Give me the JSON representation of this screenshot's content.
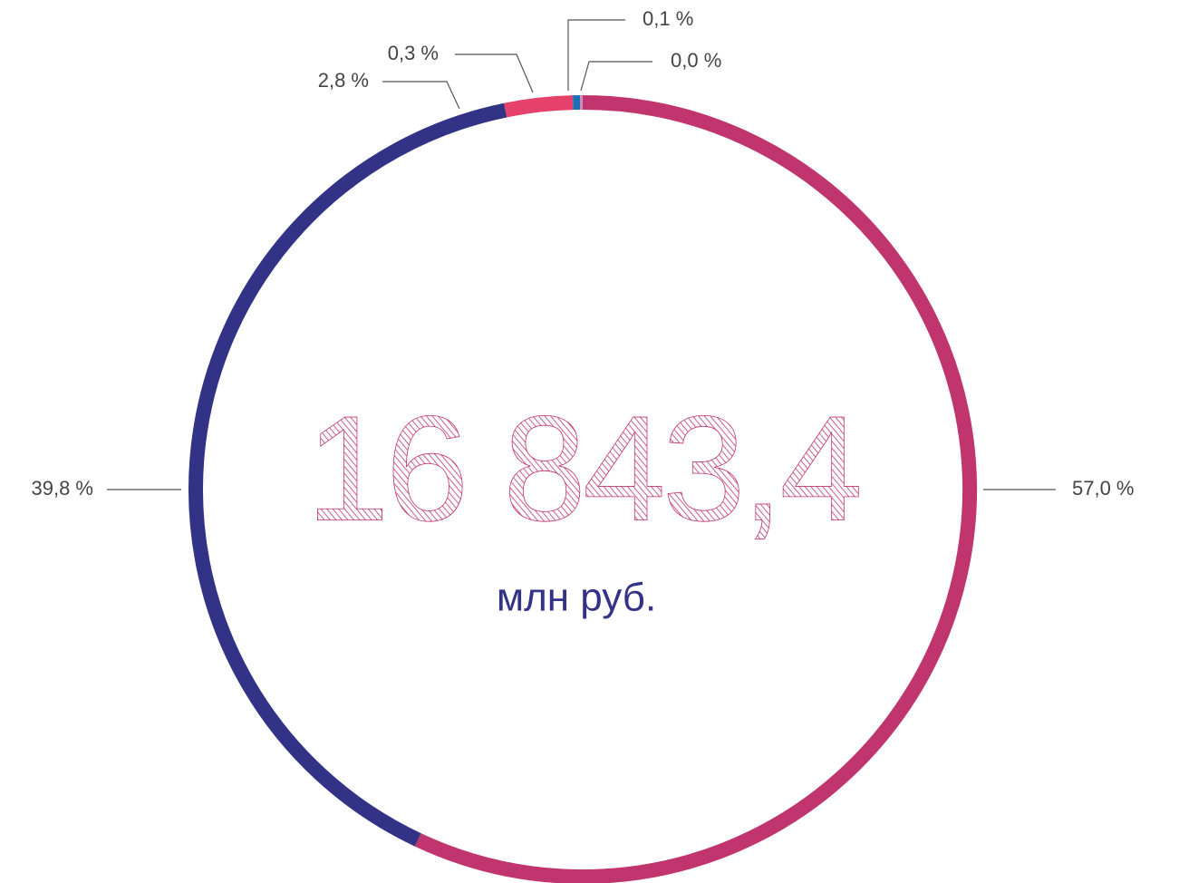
{
  "chart_data": {
    "type": "donut",
    "center_value": "16 843,4",
    "center_unit": "млн руб.",
    "values": [
      57.0,
      39.8,
      2.8,
      0.3,
      0.1,
      0.0
    ],
    "value_labels": [
      "57,0 %",
      "39,8 %",
      "2,8 %",
      "0,3 %",
      "0,1 %",
      "0,0 %"
    ],
    "colors": [
      "#c0356e",
      "#323387",
      "#e5416a",
      "#1d6fb5",
      "#d98bb5",
      "#555555"
    ]
  }
}
